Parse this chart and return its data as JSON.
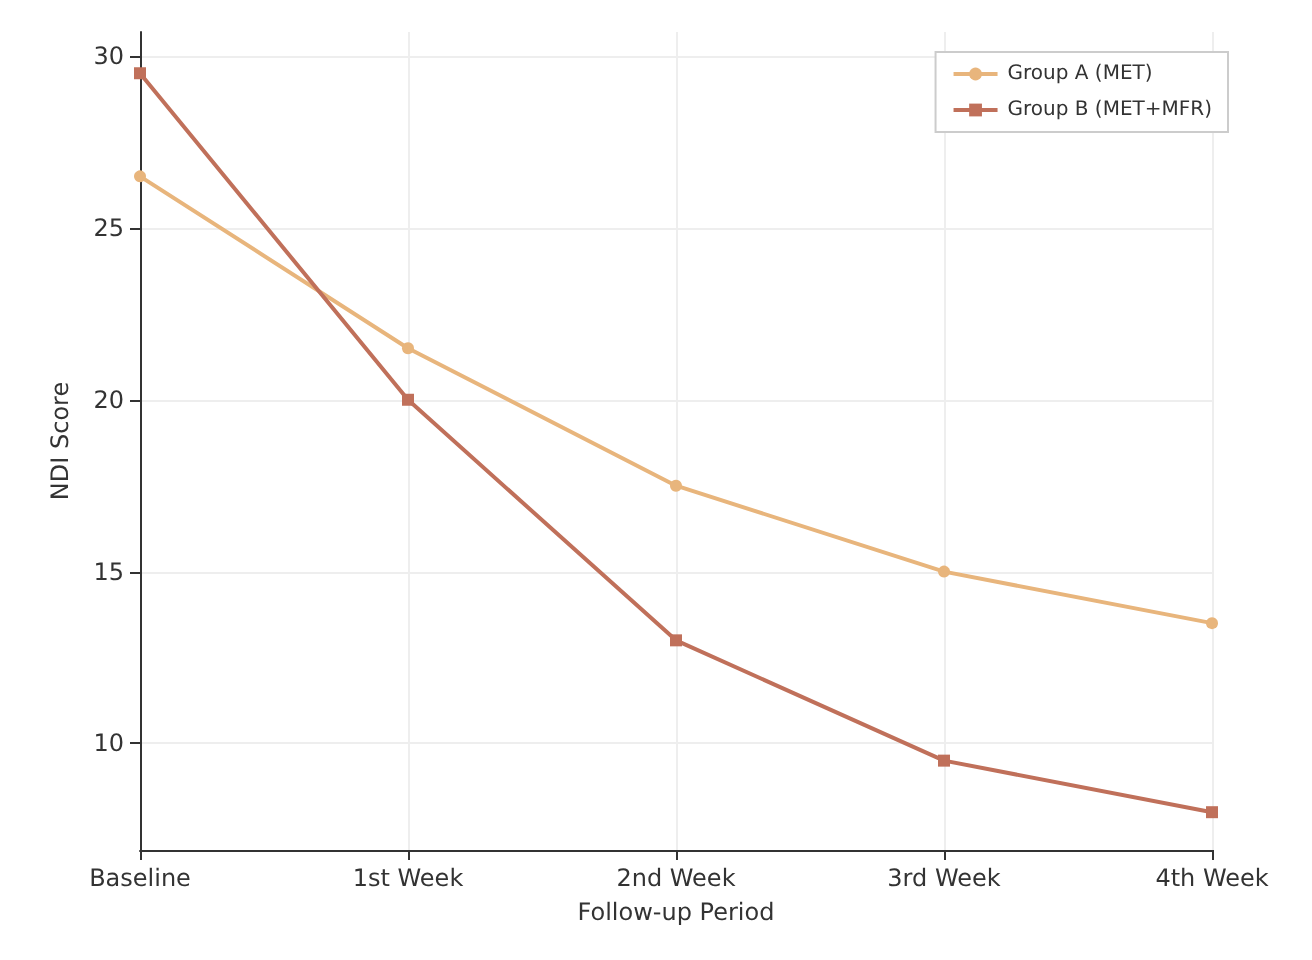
{
  "chart_data": {
    "type": "line",
    "xlabel": "Follow-up Period",
    "ylabel": "NDI Score",
    "categories": [
      "Baseline",
      "1st Week",
      "2nd Week",
      "3rd Week",
      "4th Week"
    ],
    "series": [
      {
        "name": "Group A (MET)",
        "color": "#e8b57c",
        "marker": "circle",
        "values": [
          26.5,
          21.5,
          17.5,
          15,
          13.5
        ]
      },
      {
        "name": "Group B (MET+MFR)",
        "color": "#c0705a",
        "marker": "square",
        "values": [
          29.5,
          20,
          13,
          9.5,
          8
        ]
      }
    ],
    "ylim": [
      6.9,
      30.7
    ],
    "yticks": [
      10,
      15,
      20,
      25,
      30
    ],
    "grid": true,
    "legend": "top right"
  }
}
